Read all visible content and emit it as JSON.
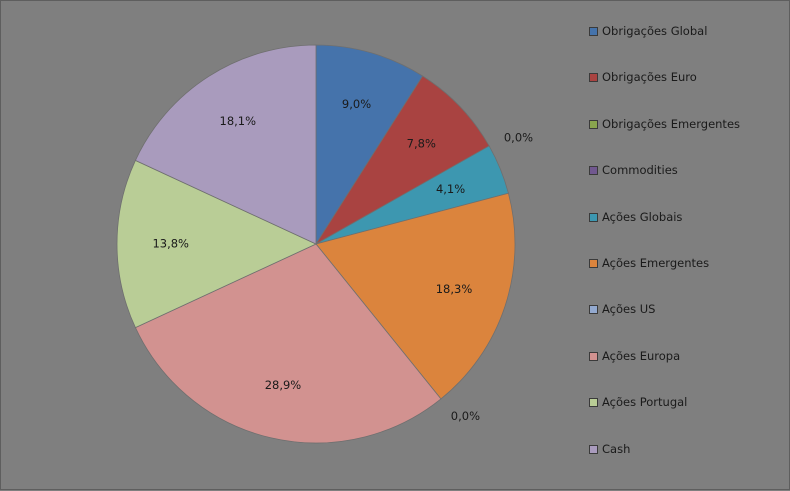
{
  "chart_data": {
    "type": "pie",
    "start_angle_deg": 0,
    "direction": "clockwise",
    "legend_position": "right",
    "slices": [
      {
        "name": "Obrigações Global",
        "value": 9.0,
        "label": "9,0%",
        "color": "#4573ab"
      },
      {
        "name": "Obrigações Euro",
        "value": 7.8,
        "label": "7,8%",
        "color": "#a94341"
      },
      {
        "name": "Obrigações Emergentes",
        "value": 0.0,
        "label": "0,0%",
        "color": "#89a54e"
      },
      {
        "name": "Commodities",
        "value": 0.0,
        "label": "",
        "color": "#71588f"
      },
      {
        "name": "Ações Globais",
        "value": 4.1,
        "label": "4,1%",
        "color": "#3d97b0"
      },
      {
        "name": "Ações Emergentes",
        "value": 18.3,
        "label": "18,3%",
        "color": "#db843d"
      },
      {
        "name": "Ações US",
        "value": 0.0,
        "label": "0,0%",
        "color": "#93a9cf"
      },
      {
        "name": "Ações Europa",
        "value": 28.9,
        "label": "28,9%",
        "color": "#d29290"
      },
      {
        "name": "Ações Portugal",
        "value": 13.8,
        "label": "13,8%",
        "color": "#b9cd96"
      },
      {
        "name": "Cash",
        "value": 18.1,
        "label": "18,1%",
        "color": "#a99bbd"
      }
    ]
  }
}
